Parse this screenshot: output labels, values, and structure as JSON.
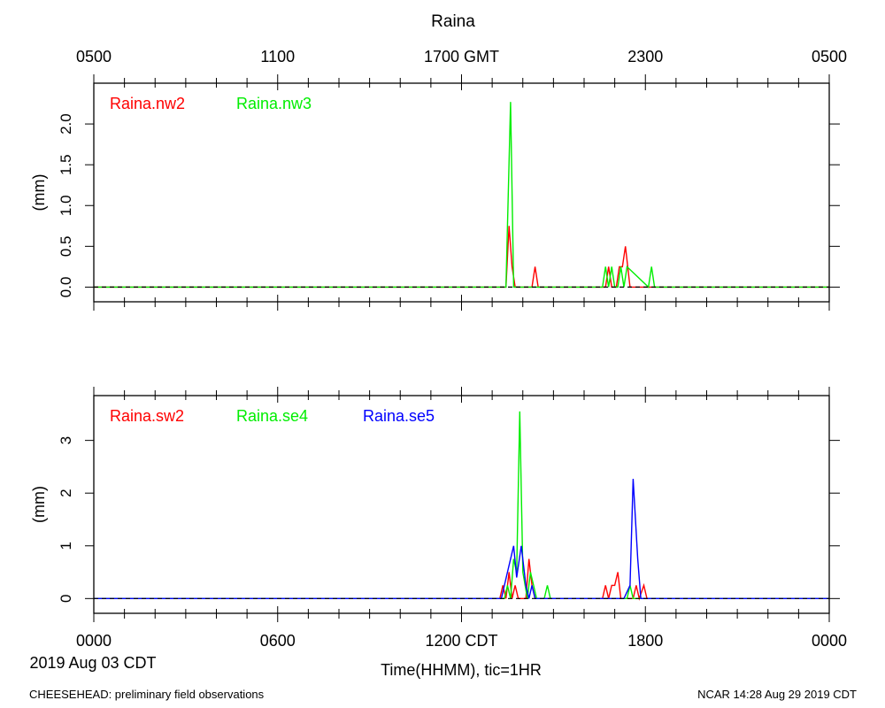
{
  "chart_data": {
    "type": "line",
    "title": "Raina",
    "top_axis": {
      "ticks": [
        {
          "hour": 0,
          "label": "0500"
        },
        {
          "hour": 6,
          "label": "1100"
        },
        {
          "hour": 12,
          "label": "1700 GMT"
        },
        {
          "hour": 18,
          "label": "2300"
        },
        {
          "hour": 24,
          "label": "0500"
        }
      ]
    },
    "bottom_axis": {
      "ticks": [
        {
          "hour": 0,
          "label": "0000"
        },
        {
          "hour": 6,
          "label": "0600"
        },
        {
          "hour": 12,
          "label": "1200 CDT"
        },
        {
          "hour": 18,
          "label": "1800"
        },
        {
          "hour": 24,
          "label": "0000"
        }
      ],
      "date_label": "2019 Aug 03 CDT",
      "xlabel": "Time(HHMM), tic=1HR"
    },
    "footer_left": "CHEESEHEAD: preliminary field observations",
    "footer_right": "NCAR 14:28 Aug 29 2019 CDT",
    "panels": [
      {
        "ylabel": "(mm)",
        "ylim": [
          -0.18,
          2.5
        ],
        "yticks": [
          {
            "value": 0,
            "label": "0.0"
          },
          {
            "value": 0.5,
            "label": "0.5"
          },
          {
            "value": 1.0,
            "label": "1.0"
          },
          {
            "value": 1.5,
            "label": "1.5"
          },
          {
            "value": 2.0,
            "label": "2.0"
          }
        ],
        "series": [
          {
            "name": "Raina.nw2",
            "color": "#ff0000",
            "x": [
              0,
              13.45,
              13.55,
              13.65,
              13.75,
              14.3,
              14.4,
              14.5,
              16.7,
              16.8,
              16.9,
              17.05,
              17.15,
              17.25,
              17.35,
              17.5,
              24
            ],
            "y": [
              0,
              0,
              0.75,
              0.25,
              0,
              0,
              0.25,
              0,
              0,
              0.25,
              0,
              0,
              0.25,
              0.25,
              0.5,
              0,
              0
            ]
          },
          {
            "name": "Raina.nw3",
            "color": "#00ee00",
            "x": [
              0,
              13.45,
              13.6,
              13.7,
              16.6,
              16.7,
              16.8,
              16.9,
              17.0,
              17.1,
              17.2,
              17.3,
              17.4,
              18.1,
              18.2,
              18.3,
              24
            ],
            "y": [
              0,
              0,
              2.27,
              0,
              0,
              0.25,
              0,
              0.25,
              0,
              0,
              0.25,
              0,
              0.25,
              0,
              0.25,
              0,
              0
            ]
          }
        ]
      },
      {
        "ylabel": "(mm)",
        "ylim": [
          -0.28,
          3.85
        ],
        "yticks": [
          {
            "value": 0,
            "label": "0"
          },
          {
            "value": 1,
            "label": "1"
          },
          {
            "value": 2,
            "label": "2"
          },
          {
            "value": 3,
            "label": "3"
          }
        ],
        "series": [
          {
            "name": "Raina.sw2",
            "color": "#ff0000",
            "x": [
              0,
              13.25,
              13.35,
              13.45,
              13.55,
              13.65,
              13.75,
              13.85,
              13.95,
              14.1,
              14.2,
              14.3,
              14.4,
              16.6,
              16.7,
              16.8,
              16.9,
              17.0,
              17.1,
              17.2,
              17.3,
              17.6,
              17.7,
              17.8,
              17.95,
              18.05,
              24
            ],
            "y": [
              0,
              0,
              0.25,
              0,
              0.5,
              0,
              0.25,
              0,
              0,
              0,
              0.75,
              0.25,
              0,
              0,
              0.25,
              0,
              0.25,
              0.25,
              0.5,
              0,
              0,
              0,
              0.25,
              0,
              0.25,
              0,
              0
            ]
          },
          {
            "name": "Raina.se4",
            "color": "#00ee00",
            "x": [
              0,
              13.4,
              13.5,
              13.6,
              13.7,
              13.8,
              13.9,
              14.0,
              14.15,
              14.25,
              14.35,
              14.45,
              14.7,
              14.8,
              14.9,
              17.4,
              17.5,
              17.6,
              24
            ],
            "y": [
              0,
              0,
              0.25,
              0,
              0.75,
              0.5,
              3.55,
              0.5,
              0,
              0.5,
              0.25,
              0,
              0,
              0.25,
              0,
              0,
              0.25,
              0,
              0
            ]
          },
          {
            "name": "Raina.se5",
            "color": "#0000ff",
            "x": [
              0,
              13.3,
              13.5,
              13.7,
              13.8,
              13.95,
              14.1,
              14.2,
              14.3,
              14.4,
              17.3,
              17.5,
              17.6,
              17.75,
              17.85,
              24
            ],
            "y": [
              0,
              0,
              0.5,
              1.0,
              0.4,
              1.0,
              0.25,
              0,
              0.25,
              0,
              0,
              0.25,
              2.27,
              0.75,
              0,
              0
            ]
          }
        ]
      }
    ]
  }
}
